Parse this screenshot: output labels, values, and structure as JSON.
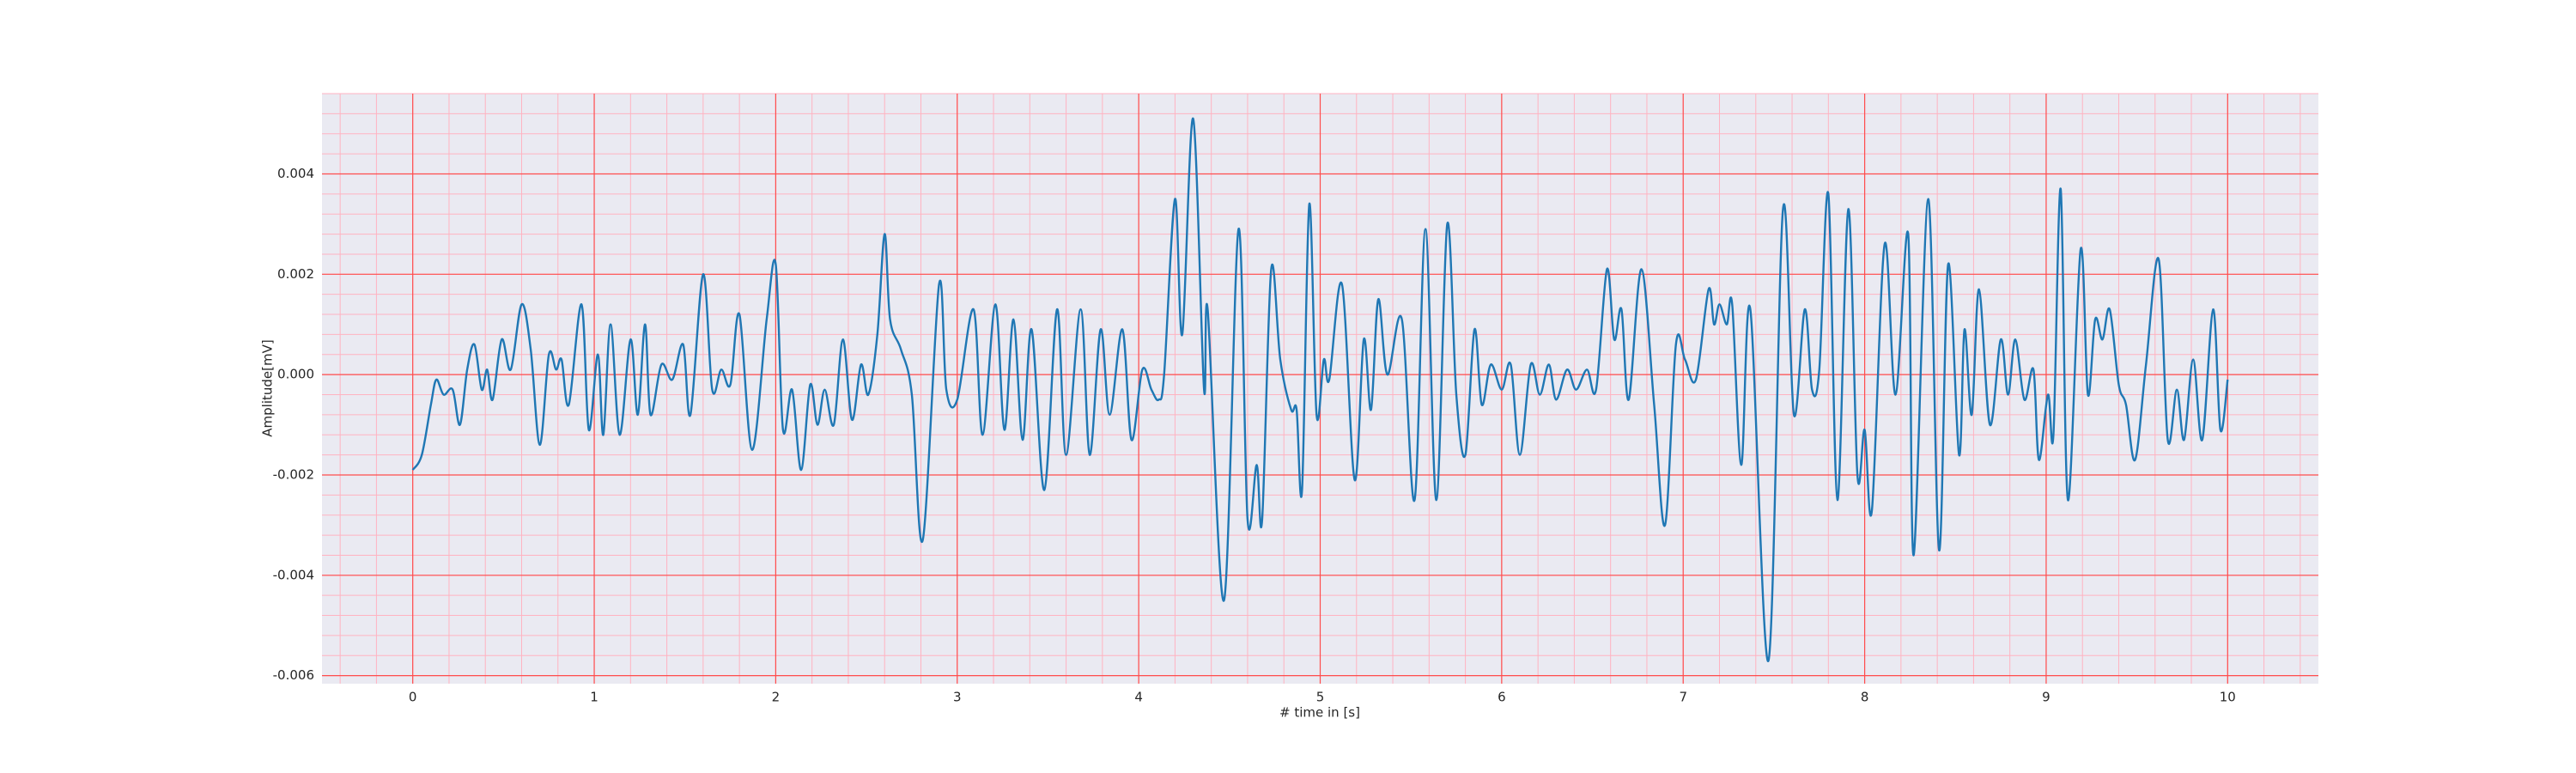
{
  "chart_data": {
    "type": "line",
    "x_label": "# time in [s]",
    "y_label": "Amplitude[mV]",
    "xlim": [
      -0.5,
      10.5
    ],
    "ylim": [
      -0.00616,
      0.0056
    ],
    "xticks": [
      0,
      1,
      2,
      3,
      4,
      5,
      6,
      7,
      8,
      9,
      10
    ],
    "yticks": [
      -0.006,
      -0.004,
      -0.002,
      {
        "value": 0,
        "label": "0.000"
      },
      0.002,
      0.004
    ],
    "grid": true,
    "minor_grid": true,
    "grid_color": "#ff4d4d",
    "minor_grid_color": "#ffb3c1",
    "background": "#eaeaf2",
    "series": [
      {
        "color": "#1f77b4",
        "x": [
          0.0,
          0.05,
          0.1,
          0.13,
          0.17,
          0.22,
          0.26,
          0.3,
          0.34,
          0.38,
          0.41,
          0.44,
          0.49,
          0.54,
          0.6,
          0.65,
          0.7,
          0.75,
          0.79,
          0.82,
          0.86,
          0.93,
          0.97,
          1.02,
          1.05,
          1.09,
          1.14,
          1.2,
          1.24,
          1.28,
          1.31,
          1.37,
          1.43,
          1.49,
          1.53,
          1.6,
          1.65,
          1.7,
          1.75,
          1.8,
          1.87,
          1.95,
          2.0,
          2.04,
          2.09,
          2.14,
          2.19,
          2.23,
          2.27,
          2.32,
          2.37,
          2.42,
          2.47,
          2.51,
          2.56,
          2.6,
          2.63,
          2.69,
          2.75,
          2.81,
          2.9,
          2.94,
          3.0,
          3.09,
          3.14,
          3.21,
          3.26,
          3.31,
          3.36,
          3.41,
          3.48,
          3.55,
          3.6,
          3.68,
          3.73,
          3.79,
          3.84,
          3.91,
          3.96,
          4.02,
          4.07,
          4.11,
          4.14,
          4.2,
          4.24,
          4.3,
          4.36,
          4.38,
          4.47,
          4.55,
          4.6,
          4.65,
          4.68,
          4.73,
          4.78,
          4.84,
          4.87,
          4.9,
          4.94,
          4.98,
          5.02,
          5.05,
          5.12,
          5.19,
          5.24,
          5.28,
          5.32,
          5.37,
          5.45,
          5.52,
          5.58,
          5.64,
          5.7,
          5.75,
          5.8,
          5.85,
          5.89,
          5.94,
          6.0,
          6.05,
          6.1,
          6.16,
          6.21,
          6.26,
          6.3,
          6.36,
          6.41,
          6.47,
          6.52,
          6.58,
          6.62,
          6.66,
          6.7,
          6.77,
          6.84,
          6.9,
          6.96,
          7.01,
          7.07,
          7.14,
          7.17,
          7.2,
          7.24,
          7.27,
          7.32,
          7.37,
          7.47,
          7.55,
          7.61,
          7.67,
          7.71,
          7.75,
          7.8,
          7.85,
          7.91,
          7.96,
          8.0,
          8.04,
          8.11,
          8.17,
          8.24,
          8.27,
          8.35,
          8.41,
          8.46,
          8.52,
          8.55,
          8.59,
          8.63,
          8.69,
          8.75,
          8.79,
          8.83,
          8.88,
          8.93,
          8.96,
          9.01,
          9.04,
          9.08,
          9.12,
          9.19,
          9.23,
          9.27,
          9.31,
          9.35,
          9.4,
          9.44,
          9.49,
          9.55,
          9.62,
          9.67,
          9.72,
          9.76,
          9.81,
          9.86,
          9.92,
          9.96,
          10.0
        ],
        "values": [
          -0.0019,
          -0.0016,
          -0.0006,
          -0.0001,
          -0.0004,
          -0.0003,
          -0.001,
          0.0001,
          0.0006,
          -0.0003,
          0.0001,
          -0.0005,
          0.0007,
          0.0001,
          0.0014,
          0.0005,
          -0.0014,
          0.0004,
          0.0001,
          0.0003,
          -0.0006,
          0.0014,
          -0.0011,
          0.0004,
          -0.0012,
          0.001,
          -0.0012,
          0.0007,
          -0.0008,
          0.001,
          -0.0008,
          0.0002,
          -0.0001,
          0.0006,
          -0.0008,
          0.002,
          -0.0003,
          0.0001,
          -0.0002,
          0.0012,
          -0.0015,
          0.0011,
          0.0022,
          -0.0011,
          -0.0003,
          -0.0019,
          -0.0002,
          -0.001,
          -0.0003,
          -0.001,
          0.0007,
          -0.0009,
          0.0002,
          -0.0004,
          0.0008,
          0.0028,
          0.0011,
          0.0005,
          -0.0004,
          -0.0033,
          0.0018,
          -0.0003,
          -0.0005,
          0.0013,
          -0.0012,
          0.0014,
          -0.0011,
          0.0011,
          -0.0013,
          0.0009,
          -0.0023,
          0.0013,
          -0.0016,
          0.0013,
          -0.0016,
          0.0009,
          -0.0008,
          0.0009,
          -0.0013,
          0.0001,
          -0.0003,
          -0.0005,
          0.0,
          0.0035,
          0.0008,
          0.0051,
          -0.0003,
          0.0013,
          -0.0045,
          0.0029,
          -0.0029,
          -0.0018,
          -0.0029,
          0.0021,
          0.0003,
          -0.0007,
          -0.0007,
          -0.0023,
          0.0034,
          -0.0008,
          0.0003,
          -0.0001,
          0.0018,
          -0.0021,
          0.0007,
          -0.0007,
          0.0015,
          0.0,
          0.0011,
          -0.0025,
          0.0029,
          -0.0025,
          0.003,
          -0.0004,
          -0.0016,
          0.0009,
          -0.0006,
          0.0002,
          -0.0003,
          0.0002,
          -0.0016,
          0.0002,
          -0.0004,
          0.0002,
          -0.0005,
          0.0001,
          -0.0003,
          0.0001,
          -0.0003,
          0.0021,
          0.0007,
          0.0013,
          -0.0005,
          0.0021,
          -0.0006,
          -0.003,
          0.0006,
          0.0003,
          -0.0001,
          0.0017,
          0.001,
          0.0014,
          0.001,
          0.0014,
          -0.0018,
          0.0013,
          -0.0057,
          0.0033,
          -0.0008,
          0.0013,
          -0.0003,
          0.0001,
          0.0036,
          -0.0025,
          0.0033,
          -0.002,
          -0.0011,
          -0.0027,
          0.0026,
          -0.0004,
          0.0028,
          -0.0036,
          0.0035,
          -0.0035,
          0.0022,
          -0.0016,
          0.0009,
          -0.0008,
          0.0017,
          -0.001,
          0.0007,
          -0.0004,
          0.0007,
          -0.0005,
          0.0001,
          -0.0017,
          -0.0004,
          -0.0012,
          0.0037,
          -0.0025,
          0.0025,
          -0.0004,
          0.0011,
          0.0007,
          0.0013,
          -0.0002,
          -0.0006,
          -0.0017,
          0.0002,
          0.0023,
          -0.0013,
          -0.0003,
          -0.0013,
          0.0003,
          -0.0013,
          0.0013,
          -0.0011,
          -0.0001
        ]
      }
    ]
  }
}
